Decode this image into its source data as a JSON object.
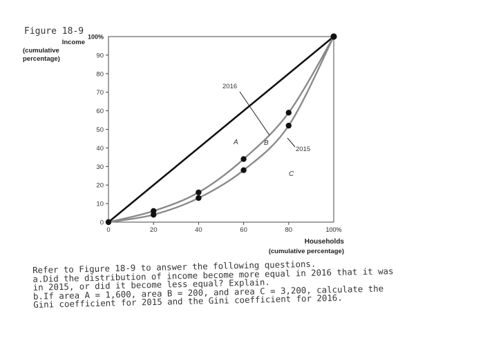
{
  "figure_title": "Figure 18-9",
  "y_axis_label": [
    "Income",
    "(cumulative",
    "percentage)"
  ],
  "x_axis_label": [
    "Households",
    "(cumulative percentage)"
  ],
  "y_top_label": "100%",
  "x_right_label": "100%",
  "question_lines": [
    "Refer to Figure 18-9 to answer the following questions.",
    "a.Did the distribution of income become more equal in 2016 that it was",
    "in 2015, or did it become less equal? Explain.",
    "b.If area A = 1,600, area B = 200, and area C = 3,200, calculate the",
    "Gini coefficient for 2015 and the Gini coefficient for 2016."
  ],
  "chart_data": {
    "type": "line",
    "xlim": [
      0,
      100
    ],
    "ylim": [
      0,
      100
    ],
    "x_ticks": [
      "0",
      "20",
      "40",
      "60",
      "80"
    ],
    "y_ticks": [
      "0",
      "10",
      "20",
      "30",
      "40",
      "50",
      "60",
      "70",
      "80",
      "90"
    ],
    "grid": false,
    "series": [
      {
        "name": "",
        "line_of_equality": true,
        "color": "#111111",
        "x": [
          0,
          100
        ],
        "y": [
          0,
          100
        ]
      },
      {
        "name": "2016",
        "color": "#8a8a8a",
        "x": [
          0,
          20,
          40,
          60,
          80,
          100
        ],
        "y": [
          0,
          6,
          16,
          34,
          59,
          100
        ]
      },
      {
        "name": "2015",
        "color": "#8a8a8a",
        "x": [
          0,
          20,
          40,
          60,
          80,
          100
        ],
        "y": [
          0,
          4,
          13,
          28,
          52,
          100
        ]
      }
    ],
    "area_labels": [
      "A",
      "B",
      "C"
    ],
    "annotations": [
      "2016",
      "2015"
    ]
  }
}
